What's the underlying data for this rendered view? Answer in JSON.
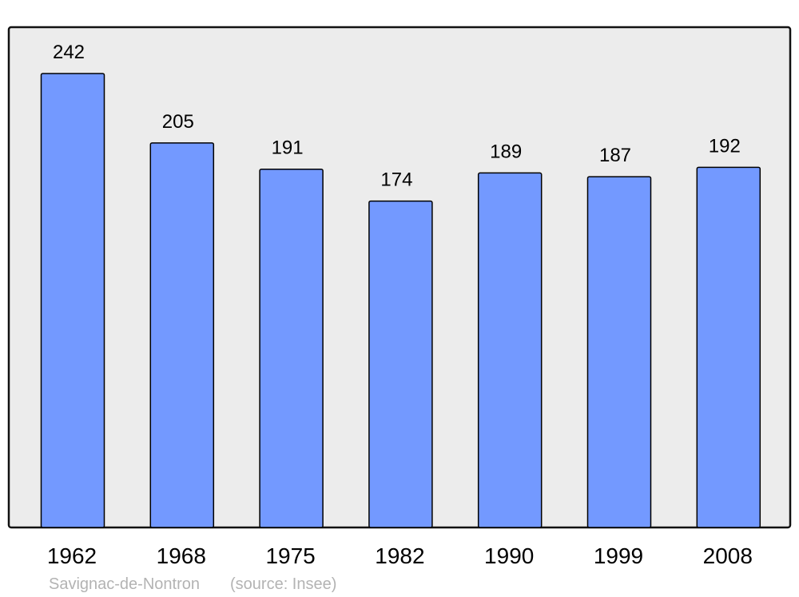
{
  "chart_data": {
    "type": "bar",
    "categories": [
      "1962",
      "1968",
      "1975",
      "1982",
      "1990",
      "1999",
      "2008"
    ],
    "values": [
      242,
      205,
      191,
      174,
      189,
      187,
      192
    ],
    "data_labels": [
      "242",
      "205",
      "191",
      "174",
      "189",
      "187",
      "192"
    ],
    "title": "",
    "xlabel": "",
    "ylabel": "",
    "ylim": [
      0,
      242
    ],
    "grid": false,
    "legend": "none",
    "footer": {
      "place": "Savignac-de-Nontron",
      "source": "(source: Insee)"
    },
    "colors": {
      "bar": "#7399ff",
      "bar_stroke": "#000000",
      "plot_background": "#ececec",
      "footer_text": "#b3b3b3"
    }
  }
}
